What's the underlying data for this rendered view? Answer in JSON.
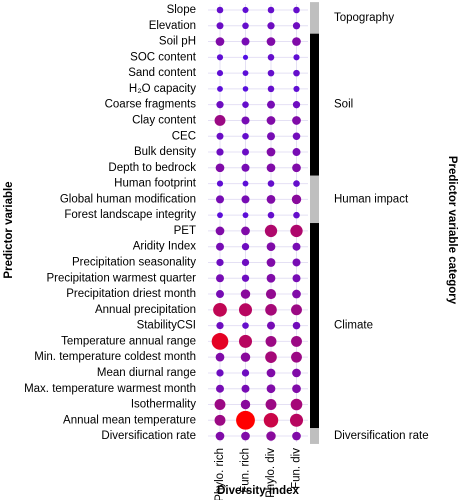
{
  "chart_data": {
    "type": "dotmatrix",
    "x_label": "Diversity index",
    "y_label": "Predictor variable",
    "group_label": "Predictor variable category",
    "columns": [
      "Phylo. rich",
      "Fun. rich",
      "Phylo. div",
      "Fun. div"
    ],
    "groups": [
      {
        "name": "Topography",
        "color": "#bfbfbf",
        "rows": [
          {
            "label": "Slope",
            "values": [
              0.15,
              0.12,
              0.15,
              0.15
            ]
          },
          {
            "label": "Elevation",
            "values": [
              0.18,
              0.15,
              0.2,
              0.2
            ]
          }
        ]
      },
      {
        "name": "Soil",
        "color": "#000000",
        "rows": [
          {
            "label": "Soil pH",
            "values": [
              0.3,
              0.25,
              0.3,
              0.3
            ]
          },
          {
            "label": "SOC content",
            "values": [
              0.12,
              0.05,
              0.15,
              0.12
            ]
          },
          {
            "label": "Sand content",
            "values": [
              0.12,
              0.1,
              0.15,
              0.15
            ]
          },
          {
            "label": "H₂O capacity",
            "values": [
              0.1,
              0.08,
              0.15,
              0.12
            ]
          },
          {
            "label": "Coarse fragments",
            "values": [
              0.2,
              0.15,
              0.25,
              0.2
            ]
          },
          {
            "label": "Clay content",
            "values": [
              0.45,
              0.25,
              0.3,
              0.3
            ]
          },
          {
            "label": "CEC",
            "values": [
              0.18,
              0.15,
              0.25,
              0.22
            ]
          },
          {
            "label": "Bulk density",
            "values": [
              0.2,
              0.18,
              0.3,
              0.25
            ]
          },
          {
            "label": "Depth to bedrock",
            "values": [
              0.3,
              0.25,
              0.3,
              0.3
            ]
          }
        ]
      },
      {
        "name": "Human impact",
        "color": "#bfbfbf",
        "rows": [
          {
            "label": "Human footprint",
            "values": [
              0.12,
              0.1,
              0.15,
              0.15
            ]
          },
          {
            "label": "Global human modification",
            "values": [
              0.25,
              0.25,
              0.3,
              0.35
            ]
          },
          {
            "label": "Forest landscape integrity",
            "values": [
              0.1,
              0.1,
              0.15,
              0.15
            ]
          }
        ]
      },
      {
        "name": "Climate",
        "color": "#000000",
        "rows": [
          {
            "label": "PET",
            "values": [
              0.3,
              0.3,
              0.55,
              0.55
            ]
          },
          {
            "label": "Aridity Index",
            "values": [
              0.25,
              0.2,
              0.3,
              0.25
            ]
          },
          {
            "label": "Precipitation seasonality",
            "values": [
              0.2,
              0.2,
              0.3,
              0.25
            ]
          },
          {
            "label": "Precipitation warmest quarter",
            "values": [
              0.25,
              0.2,
              0.3,
              0.25
            ]
          },
          {
            "label": "Precipitation driest month",
            "values": [
              0.25,
              0.35,
              0.4,
              0.3
            ]
          },
          {
            "label": "Annual precipitation",
            "values": [
              0.65,
              0.6,
              0.5,
              0.45
            ]
          },
          {
            "label": "StabilityCSI",
            "values": [
              0.2,
              0.15,
              0.25,
              0.22
            ]
          },
          {
            "label": "Temperature annual range",
            "values": [
              0.85,
              0.6,
              0.45,
              0.45
            ]
          },
          {
            "label": "Min. temperature coldest month",
            "values": [
              0.3,
              0.35,
              0.5,
              0.45
            ]
          },
          {
            "label": "Mean diurnal range",
            "values": [
              0.2,
              0.2,
              0.3,
              0.3
            ]
          },
          {
            "label": "Max. temperature warmest month",
            "values": [
              0.25,
              0.25,
              0.3,
              0.3
            ]
          },
          {
            "label": "Isothermality",
            "values": [
              0.45,
              0.35,
              0.45,
              0.5
            ]
          },
          {
            "label": "Annual mean temperature",
            "values": [
              0.45,
              1.0,
              0.7,
              0.6
            ]
          }
        ]
      },
      {
        "name": "Diversification rate",
        "color": "#bfbfbf",
        "rows": [
          {
            "label": "Diversification rate",
            "values": [
              0.3,
              0.3,
              0.35,
              0.3
            ]
          }
        ]
      }
    ]
  }
}
